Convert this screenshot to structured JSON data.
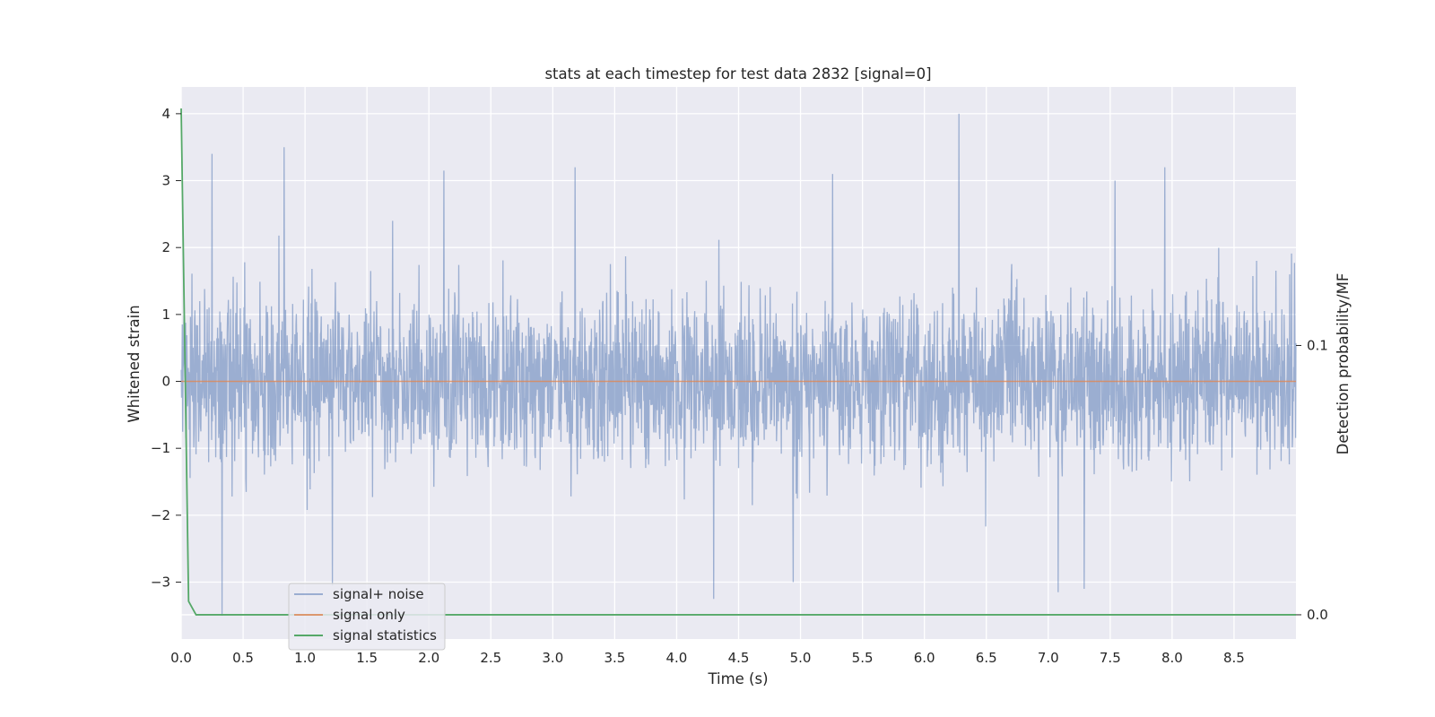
{
  "chart_data": {
    "type": "line",
    "title": "stats at each timestep for test data 2832 [signal=0]",
    "xlabel": "Time (s)",
    "ylabel": "Whitened strain",
    "y2label": "Detection probability/MF",
    "xlim": [
      0,
      9.0
    ],
    "ylim": [
      -3.85,
      4.4
    ],
    "y2lim": [
      -0.009,
      0.196
    ],
    "x_ticks": [
      0.0,
      0.5,
      1.0,
      1.5,
      2.0,
      2.5,
      3.0,
      3.5,
      4.0,
      4.5,
      5.0,
      5.5,
      6.0,
      6.5,
      7.0,
      7.5,
      8.0,
      8.5
    ],
    "x_tick_labels": [
      "0.0",
      "0.5",
      "1.0",
      "1.5",
      "2.0",
      "2.5",
      "3.0",
      "3.5",
      "4.0",
      "4.5",
      "5.0",
      "5.5",
      "6.0",
      "6.5",
      "7.0",
      "7.5",
      "8.0",
      "8.5"
    ],
    "y_ticks": [
      -3,
      -2,
      -1,
      0,
      1,
      2,
      3,
      4
    ],
    "y_tick_labels": [
      "−3",
      "−2",
      "−1",
      "0",
      "1",
      "2",
      "3",
      "4"
    ],
    "y2_ticks": [
      0.0,
      0.1
    ],
    "y2_tick_labels": [
      "0.0",
      "0.1"
    ],
    "grid": true,
    "legend_placement": "lower-left",
    "series": [
      {
        "name": "signal+ noise",
        "color": "#4c72b0",
        "axis": "left",
        "kind": "noise",
        "x_range": [
          0,
          9.0
        ],
        "typical_peak_up": 2.0,
        "typical_peak_down": -1.8,
        "peaks": [
          [
            0.25,
            3.4
          ],
          [
            0.83,
            3.5
          ],
          [
            2.12,
            3.15
          ],
          [
            3.18,
            3.2
          ],
          [
            5.26,
            3.1
          ],
          [
            6.28,
            4.0
          ],
          [
            7.54,
            3.0
          ],
          [
            7.94,
            3.2
          ],
          [
            0.33,
            -3.5
          ],
          [
            1.22,
            -3.05
          ],
          [
            4.3,
            -3.25
          ],
          [
            4.94,
            -3.0
          ],
          [
            7.08,
            -3.15
          ],
          [
            7.29,
            -3.1
          ]
        ]
      },
      {
        "name": "signal only",
        "color": "#dd8452",
        "axis": "left",
        "x": [
          0,
          9.0
        ],
        "y": [
          0,
          0
        ]
      },
      {
        "name": "signal statistics",
        "color": "#55a868",
        "axis": "right",
        "x": [
          0.0,
          0.06,
          0.12,
          9.0
        ],
        "y": [
          0.188,
          0.005,
          0.0,
          0.0
        ]
      }
    ],
    "colors": {
      "plot_background": "#eaeaf2",
      "grid": "#ffffff",
      "text": "#262626"
    }
  }
}
